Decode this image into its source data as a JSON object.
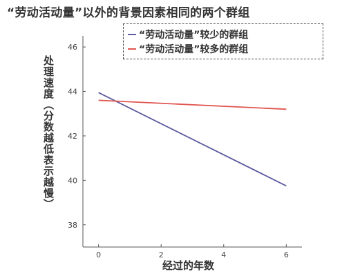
{
  "chart_data": {
    "type": "line",
    "title": "“劳动活动量”以外的背景因素相同的两个群组",
    "xlabel": "经过的年数",
    "ylabel": "处理速度（分数越低表示越慢）",
    "x": [
      0,
      6
    ],
    "xlim": [
      -0.5,
      6.5
    ],
    "ylim": [
      37,
      46.5
    ],
    "xticks": [
      0,
      2,
      4,
      6
    ],
    "yticks": [
      38,
      40,
      42,
      44,
      46
    ],
    "grid": false,
    "legend_position": "top-right",
    "series": [
      {
        "name": "“劳动活动量”较少的群组",
        "color": "#5a5a9e",
        "values": [
          43.95,
          39.75
        ]
      },
      {
        "name": "“劳动活动量”较多的群组",
        "color": "#e0554f",
        "values": [
          43.6,
          43.2
        ]
      }
    ]
  }
}
